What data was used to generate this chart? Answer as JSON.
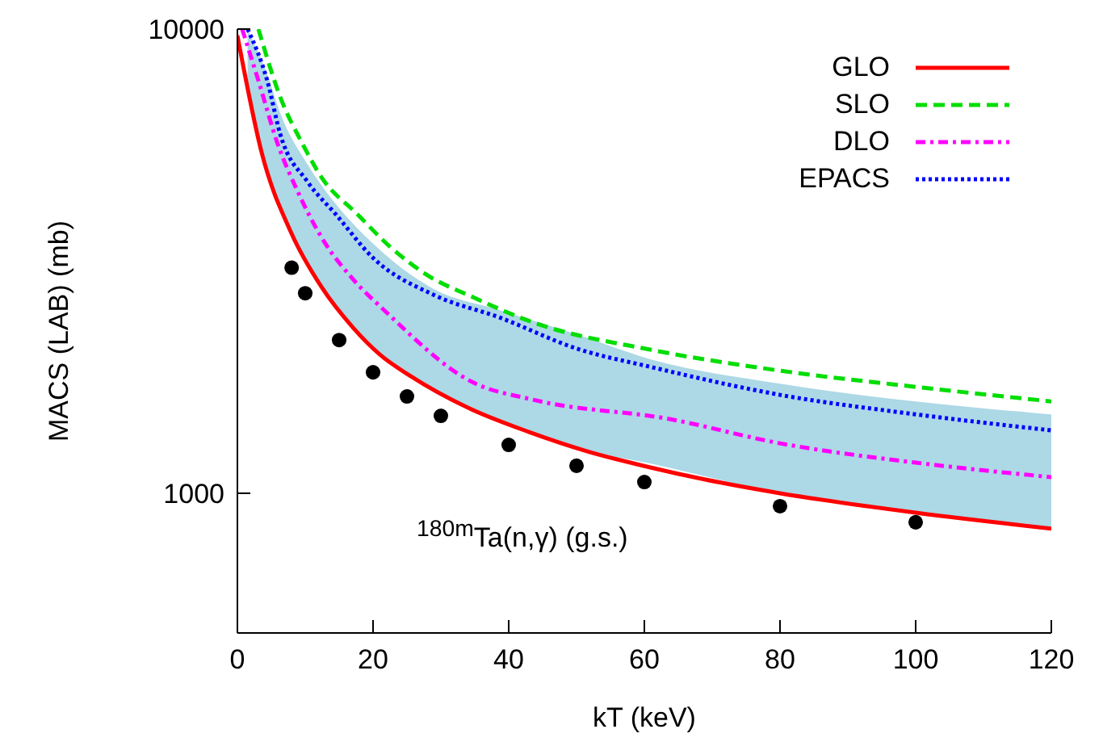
{
  "chart_data": {
    "type": "line",
    "xlabel": "kT (keV)",
    "ylabel": "MACS (LAB) (mb)",
    "annotations": [
      "$^{180m}$Ta(n,γ) (g.s.)"
    ],
    "xlim": [
      0,
      120
    ],
    "xticks": [
      0,
      20,
      40,
      60,
      80,
      100,
      120
    ],
    "ylim": [
      500,
      10000
    ],
    "yticks": [
      1000,
      10000
    ],
    "log": "y",
    "grid": false,
    "legend": "top right",
    "marker": "none",
    "series": [
      {
        "name": "GLO",
        "color": "#ff0000",
        "line_style": "solid",
        "x": [
          0,
          3.6,
          8,
          12.4,
          17,
          21,
          25.4,
          34,
          43,
          51.6,
          60.5,
          69,
          80,
          100,
          120
        ],
        "values": [
          9685,
          5404,
          3623,
          2782,
          2278,
          1990,
          1793,
          1528,
          1355,
          1231,
          1140,
          1070,
          1000,
          908,
          839
        ]
      },
      {
        "name": "SLO",
        "color": "#00dd00",
        "line_style": "dashed",
        "x": [
          3.1,
          6.3,
          9.7,
          12.4,
          17.7,
          22.5,
          28,
          34.6,
          43.6,
          61,
          80,
          100,
          120
        ],
        "values": [
          10000,
          7150,
          5623,
          4794,
          3990,
          3398,
          2950,
          2650,
          2334,
          2037,
          1837,
          1695,
          1577
        ]
      },
      {
        "name": "DLO",
        "color": "#ff00ff",
        "line_style": "dashdot",
        "x": [
          0.7,
          3.1,
          6,
          8.7,
          12.8,
          17,
          21.8,
          34.6,
          43.6,
          63.7,
          80,
          100,
          120
        ],
        "values": [
          10000,
          7743,
          5623,
          4530,
          3482,
          2896,
          2467,
          1737,
          1590,
          1445,
          1281,
          1164,
          1083
        ]
      },
      {
        "name": "EPACS",
        "color": "#0000ff",
        "line_style": "dotted",
        "x": [
          1.5,
          4.4,
          6.3,
          10.4,
          14.5,
          20,
          29,
          38.7,
          50,
          61,
          80,
          100,
          120
        ],
        "values": [
          10000,
          7743,
          5948,
          4677,
          3990,
          3214,
          2673,
          2390,
          2050,
          1870,
          1629,
          1479,
          1366
        ],
        "lower": [
          7600,
          5050,
          4200,
          3060,
          2530,
          2060,
          1650,
          1440,
          1250,
          1158,
          1000,
          908,
          839
        ],
        "upper": [
          10000,
          8000,
          6600,
          5100,
          4200,
          3450,
          2750,
          2480,
          2200,
          1942,
          1722,
          1577,
          1479
        ]
      },
      {
        "type": "scatter",
        "color": "#000000",
        "marker": "circle",
        "x": [
          8,
          10,
          15,
          20,
          25,
          30,
          40,
          50,
          60,
          80,
          100
        ],
        "values": [
          3062,
          2697,
          2138,
          1822,
          1616,
          1468,
          1271,
          1146,
          1057,
          938,
          866
        ]
      }
    ]
  }
}
